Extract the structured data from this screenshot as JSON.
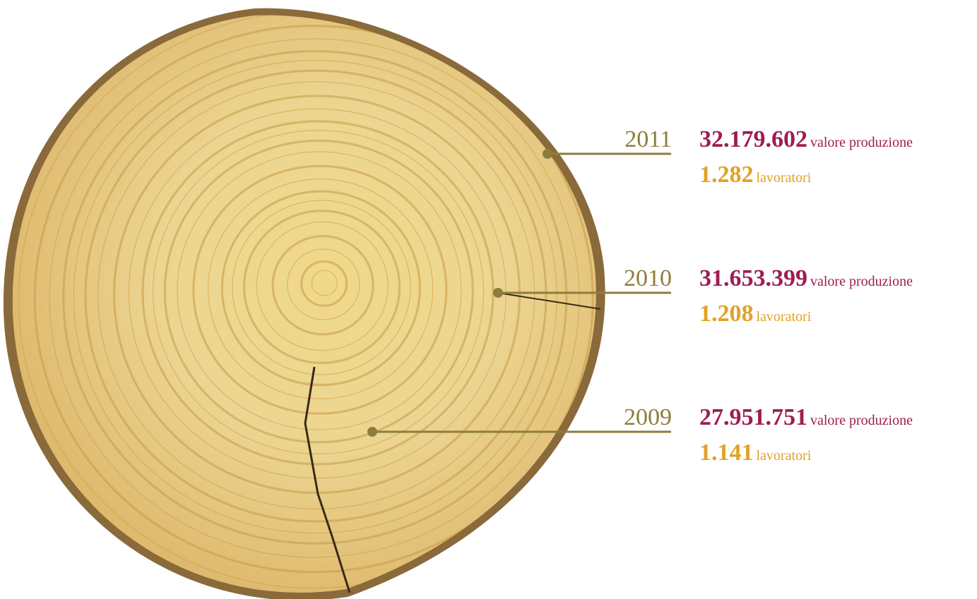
{
  "entries": [
    {
      "year": "2011",
      "value": "32.179.602",
      "value_label": "valore produzione",
      "workers": "1.282",
      "workers_label": "lavoratori"
    },
    {
      "year": "2010",
      "value": "31.653.399",
      "value_label": "valore produzione",
      "workers": "1.208",
      "workers_label": "lavoratori"
    },
    {
      "year": "2009",
      "value": "27.951.751",
      "value_label": "valore produzione",
      "workers": "1.141",
      "workers_label": "lavoratori"
    }
  ]
}
